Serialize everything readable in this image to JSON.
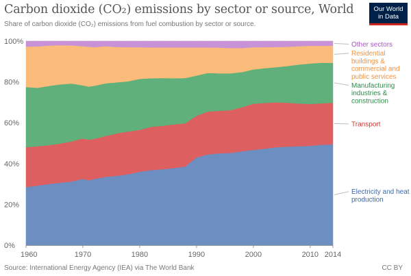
{
  "header": {
    "title": "Carbon dioxide (CO₂) emissions by sector or source, World",
    "subtitle": "Share of carbon dioxide (CO₂) emissions from fuel combustion by sector or source."
  },
  "logo": {
    "line1": "Our World",
    "line2": "in Data",
    "bg_color": "#002147",
    "bar_color": "#ce261e"
  },
  "footer": {
    "source": "Source: International Energy Agency (IEA) via The World Bank",
    "license": "CC BY"
  },
  "chart_data": {
    "type": "area",
    "stacked": true,
    "x": [
      1960,
      1962,
      1964,
      1966,
      1968,
      1970,
      1971,
      1972,
      1974,
      1976,
      1978,
      1980,
      1982,
      1984,
      1986,
      1988,
      1990,
      1992,
      1994,
      1996,
      1998,
      2000,
      2002,
      2004,
      2006,
      2008,
      2010,
      2012,
      2014
    ],
    "x_ticks": [
      1960,
      1970,
      1980,
      1990,
      2000,
      2010,
      2014
    ],
    "y_ticks": [
      0,
      20,
      40,
      60,
      80,
      100
    ],
    "y_tick_suffix": "%",
    "ylim": [
      0,
      100
    ],
    "xlim": [
      1960,
      2014
    ],
    "grid": "horizontal dashed",
    "series": [
      {
        "name": "Electricity and heat production",
        "color": "#6d8ec0",
        "label_color": "#3f68a8",
        "values": [
          28.5,
          29.2,
          30.0,
          30.6,
          31.2,
          32.5,
          31.8,
          32.4,
          33.5,
          34.0,
          34.8,
          36.0,
          36.8,
          37.2,
          37.8,
          38.5,
          43.0,
          44.5,
          45.0,
          45.2,
          46.0,
          46.7,
          47.3,
          48.0,
          48.3,
          48.5,
          48.7,
          49.2,
          49.4
        ]
      },
      {
        "name": "Transport",
        "color": "#dd5f5f",
        "label_color": "#d43a35",
        "values": [
          19.5,
          19.3,
          19.0,
          19.2,
          19.6,
          19.8,
          19.9,
          19.7,
          20.0,
          20.8,
          20.9,
          20.5,
          21.2,
          21.3,
          21.4,
          21.2,
          20.4,
          21.0,
          20.8,
          21.0,
          21.6,
          22.6,
          22.4,
          22.0,
          21.5,
          20.9,
          20.5,
          20.3,
          20.4
        ]
      },
      {
        "name": "Manufacturing industries & construction",
        "color": "#5fb07a",
        "label_color": "#2e8a4a",
        "values": [
          29.5,
          28.6,
          29.0,
          29.0,
          28.4,
          26.0,
          26.0,
          26.0,
          25.8,
          25.0,
          24.6,
          25.0,
          23.8,
          23.4,
          22.6,
          22.2,
          19.7,
          18.9,
          18.4,
          18.0,
          17.2,
          16.8,
          17.0,
          17.2,
          18.0,
          19.1,
          19.8,
          19.9,
          19.5
        ]
      },
      {
        "name": "Residential buildings & commercial and public services",
        "color": "#fbbb7a",
        "label_color": "#f0923a",
        "values": [
          19.8,
          20.3,
          19.8,
          19.2,
          18.7,
          19.2,
          19.6,
          18.9,
          18.2,
          17.3,
          16.7,
          15.5,
          15.1,
          15.0,
          15.1,
          15.0,
          13.8,
          12.5,
          12.6,
          12.4,
          11.8,
          10.9,
          10.3,
          9.9,
          9.4,
          9.0,
          8.7,
          8.3,
          8.4
        ]
      },
      {
        "name": "Other sectors",
        "color": "#c893d6",
        "label_color": "#a855c4",
        "values": [
          2.7,
          2.6,
          2.2,
          2.0,
          2.1,
          2.5,
          2.7,
          3.0,
          2.5,
          2.9,
          3.0,
          3.0,
          3.1,
          3.1,
          3.1,
          3.1,
          3.1,
          3.1,
          3.2,
          3.4,
          3.4,
          3.0,
          3.0,
          2.9,
          2.8,
          2.5,
          2.3,
          2.3,
          2.3
        ]
      }
    ],
    "legend_order": [
      "Other sectors",
      "Residential buildings & commercial and public services",
      "Manufacturing industries & construction",
      "Transport",
      "Electricity and heat production"
    ],
    "legend_lines": {
      "Other sectors": [
        "Other sectors"
      ],
      "Residential buildings & commercial and public services": [
        "Residential",
        "buildings &",
        "commercial and",
        "public services"
      ],
      "Manufacturing industries & construction": [
        "Manufacturing",
        "industries &",
        "construction"
      ],
      "Transport": [
        "Transport"
      ],
      "Electricity and heat production": [
        "Electricity and heat",
        "production"
      ]
    },
    "legend_placement": "right"
  }
}
